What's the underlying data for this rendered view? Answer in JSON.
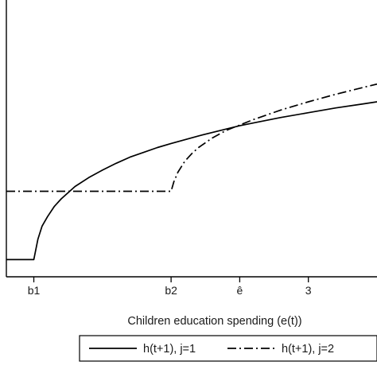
{
  "chart_data": {
    "type": "line",
    "title": "",
    "xlabel": "Children education spending (e(t))",
    "ylabel": "",
    "x_ticks": [
      {
        "label": "b1",
        "value": 1.0
      },
      {
        "label": "b2",
        "value": 2.0
      },
      {
        "label": "ê",
        "value": 2.5
      },
      {
        "label": "3",
        "value": 3.0
      }
    ],
    "xlim": [
      0.8,
      3.5
    ],
    "ylim": [
      -0.1,
      3.8
    ],
    "grid": false,
    "legend_position": "bottom",
    "series": [
      {
        "name": "h(t+1), j=1",
        "line_style": "solid",
        "color": "#000000",
        "points": [
          [
            0.8,
            0.0
          ],
          [
            1.0,
            0.0
          ],
          [
            1.03,
            0.3
          ],
          [
            1.06,
            0.49
          ],
          [
            1.1,
            0.63
          ],
          [
            1.15,
            0.78
          ],
          [
            1.2,
            0.89
          ],
          [
            1.3,
            1.07
          ],
          [
            1.4,
            1.2
          ],
          [
            1.5,
            1.31
          ],
          [
            1.6,
            1.41
          ],
          [
            1.7,
            1.5
          ],
          [
            1.8,
            1.57
          ],
          [
            1.9,
            1.64
          ],
          [
            2.0,
            1.7
          ],
          [
            2.2,
            1.81
          ],
          [
            2.4,
            1.91
          ],
          [
            2.5,
            1.96
          ],
          [
            2.6,
            2.0
          ],
          [
            2.8,
            2.08
          ],
          [
            3.0,
            2.15
          ],
          [
            3.2,
            2.22
          ],
          [
            3.4,
            2.28
          ],
          [
            3.5,
            2.31
          ]
        ]
      },
      {
        "name": "h(t+1), j=2",
        "line_style": "dash-dot",
        "color": "#000000",
        "points": [
          [
            0.8,
            1.0
          ],
          [
            1.0,
            1.0
          ],
          [
            1.5,
            1.0
          ],
          [
            2.0,
            1.0
          ],
          [
            2.02,
            1.14
          ],
          [
            2.05,
            1.28
          ],
          [
            2.1,
            1.44
          ],
          [
            2.15,
            1.55
          ],
          [
            2.2,
            1.64
          ],
          [
            2.3,
            1.78
          ],
          [
            2.4,
            1.89
          ],
          [
            2.5,
            1.97
          ],
          [
            2.6,
            2.05
          ],
          [
            2.8,
            2.19
          ],
          [
            3.0,
            2.31
          ],
          [
            3.2,
            2.42
          ],
          [
            3.4,
            2.52
          ],
          [
            3.5,
            2.57
          ]
        ]
      }
    ]
  }
}
